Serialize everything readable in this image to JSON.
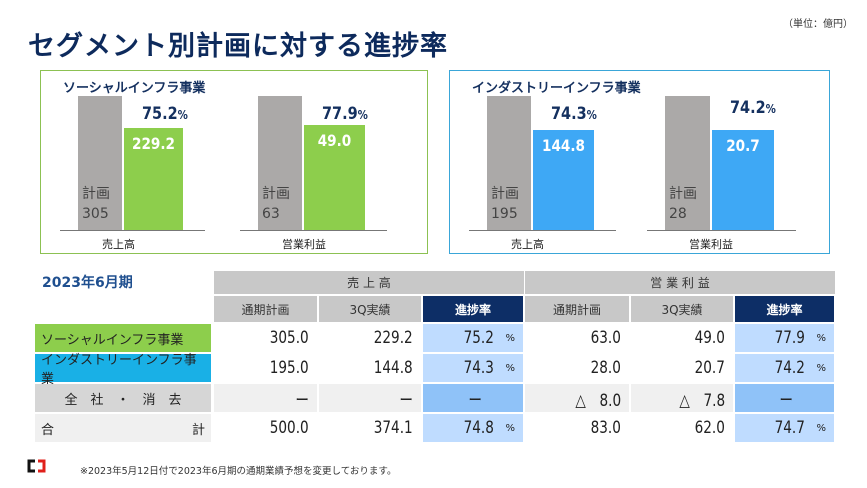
{
  "title": "セグメント別計画に対する進捗率",
  "unit": "（単位：億円）",
  "charts": [
    {
      "name": "ソーシャルインフラ事業",
      "color": "#8dce4c",
      "groups": [
        {
          "label": "売上高",
          "plan_label": "計画",
          "plan": "305",
          "actual": "229.2",
          "progress": "75.2",
          "pct": "%"
        },
        {
          "label": "営業利益",
          "plan_label": "計画",
          "plan": "63",
          "actual": "49.0",
          "progress": "77.9",
          "pct": "%"
        }
      ]
    },
    {
      "name": "インダストリーインフラ事業",
      "color": "#3ea8f5",
      "groups": [
        {
          "label": "売上高",
          "plan_label": "計画",
          "plan": "195",
          "actual": "144.8",
          "progress": "74.3",
          "pct": "%"
        },
        {
          "label": "営業利益",
          "plan_label": "計画",
          "plan": "28",
          "actual": "20.7",
          "progress": "74.2",
          "pct": "%"
        }
      ]
    }
  ],
  "table": {
    "period": "2023年6月期",
    "groups": [
      "売 上 高",
      "営 業 利 益"
    ],
    "columns": [
      "通期計画",
      "3Q実績",
      "進捗率",
      "通期計画",
      "3Q実績",
      "進捗率"
    ],
    "rows": [
      {
        "label": "ソーシャルインフラ事業",
        "cells": [
          "305.0",
          "229.2",
          "75.2",
          "63.0",
          "49.0",
          "77.9"
        ]
      },
      {
        "label": "インダストリーインフラ事業",
        "cells": [
          "195.0",
          "144.8",
          "74.3",
          "28.0",
          "20.7",
          "74.2"
        ]
      },
      {
        "label": "全　社　・　消　去",
        "cells": [
          "ー",
          "ー",
          "ー",
          "△　8.0",
          "△　7.8",
          "ー"
        ]
      },
      {
        "label_left": "合",
        "label_right": "計",
        "cells": [
          "500.0",
          "374.1",
          "74.8",
          "83.0",
          "62.0",
          "74.7"
        ]
      }
    ],
    "pct": "%"
  },
  "footnote": "※2023年5月12日付で2023年6月期の通期業績予想を変更しております。",
  "logo": "CJ"
}
